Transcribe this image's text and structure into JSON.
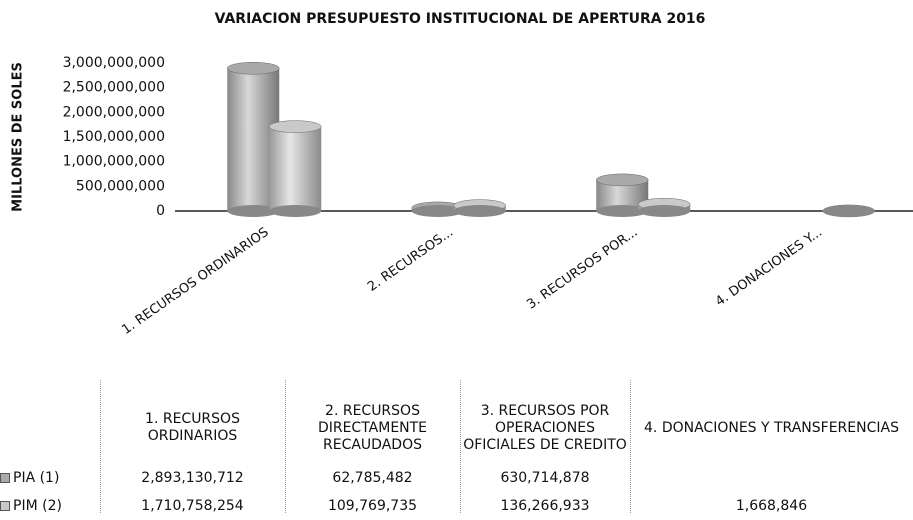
{
  "chart_data": {
    "type": "bar",
    "title": "VARIACION PRESUPUESTO INSTITUCIONAL DE APERTURA 2016",
    "y_label": "MILLONES DE SOLES",
    "categories": [
      "1. RECURSOS ORDINARIOS",
      "2. RECURSOS...",
      "3. RECURSOS POR...",
      "4. DONACIONES Y..."
    ],
    "table_headers": [
      "1. RECURSOS ORDINARIOS",
      "2. RECURSOS DIRECTAMENTE RECAUDADOS",
      "3. RECURSOS POR OPERACIONES OFICIALES DE CREDITO",
      "4. DONACIONES Y TRANSFERENCIAS"
    ],
    "series": [
      {
        "name": "PIA (1)",
        "color": "#a9a9a9",
        "values": [
          2893130712,
          62785482,
          630714878,
          null
        ],
        "value_labels": [
          "2,893,130,712",
          "62,785,482",
          "630,714,878",
          null
        ]
      },
      {
        "name": "PIM (2)",
        "color": "#c9c9c9",
        "values": [
          1710758254,
          109769735,
          136266933,
          1668846
        ],
        "value_labels": [
          "1,710,758,254",
          "109,769,735",
          "136,266,933",
          "1,668,846"
        ]
      }
    ],
    "ylim": [
      0,
      3000000000
    ],
    "yticks": [
      {
        "value": 0,
        "label": "0"
      },
      {
        "value": 500000000,
        "label": "500,000,000"
      },
      {
        "value": 1000000000,
        "label": "1,000,000,000"
      },
      {
        "value": 1500000000,
        "label": "1,500,000,000"
      },
      {
        "value": 2000000000,
        "label": "2,000,000,000"
      },
      {
        "value": 2500000000,
        "label": "2,500,000,000"
      },
      {
        "value": 3000000000,
        "label": "3,000,000,000"
      }
    ],
    "grid": false
  }
}
